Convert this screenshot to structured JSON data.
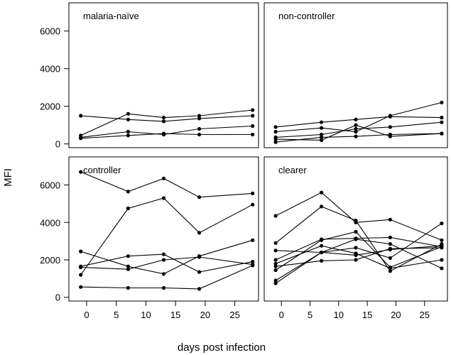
{
  "chart_data": {
    "type": "line",
    "xlabel": "days post infection",
    "ylabel": "MFI",
    "x": [
      -1,
      7,
      13,
      19,
      28
    ],
    "xlim": [
      -3,
      29
    ],
    "xticks": [
      0,
      5,
      10,
      15,
      20,
      25
    ],
    "panels": [
      {
        "title": "malaria-naïve",
        "ylim": [
          -200,
          7500
        ],
        "yticks": [
          0,
          2000,
          4000,
          6000
        ],
        "series": [
          {
            "values": [
              1500,
              1300,
              1200,
              1350,
              1500
            ]
          },
          {
            "values": [
              450,
              1600,
              1400,
              1500,
              1800
            ]
          },
          {
            "values": [
              350,
              650,
              500,
              800,
              950
            ]
          },
          {
            "values": [
              300,
              450,
              550,
              500,
              500
            ]
          }
        ]
      },
      {
        "title": "non-controller",
        "ylim": [
          -200,
          7500
        ],
        "yticks": [
          0,
          2000,
          4000,
          6000
        ],
        "series": [
          {
            "values": [
              900,
              1150,
              1300,
              1450,
              1400
            ]
          },
          {
            "values": [
              650,
              850,
              650,
              1500,
              2200
            ]
          },
          {
            "values": [
              350,
              500,
              800,
              900,
              1150
            ]
          },
          {
            "values": [
              250,
              200,
              1000,
              400,
              550
            ]
          },
          {
            "values": [
              100,
              350,
              400,
              500,
              550
            ]
          }
        ]
      },
      {
        "title": "controller",
        "ylim": [
          -200,
          7500
        ],
        "yticks": [
          0,
          2000,
          4000,
          6000
        ],
        "series": [
          {
            "values": [
              6700,
              5650,
              6350,
              5350,
              5550
            ]
          },
          {
            "values": [
              1200,
              4750,
              5300,
              3450,
              4950
            ]
          },
          {
            "values": [
              2450,
              1650,
              1250,
              2200,
              3050
            ]
          },
          {
            "values": [
              1650,
              2200,
              2300,
              1350,
              1900
            ]
          },
          {
            "values": [
              1600,
              1500,
              2000,
              2150,
              1750
            ]
          },
          {
            "values": [
              550,
              500,
              500,
              450,
              1700
            ]
          }
        ]
      },
      {
        "title": "clearer",
        "ylim": [
          -200,
          7500
        ],
        "yticks": [
          0,
          2000,
          4000,
          6000
        ],
        "series": [
          {
            "values": [
              4350,
              5600,
              4000,
              4150,
              3050
            ]
          },
          {
            "values": [
              2900,
              4850,
              4100,
              1400,
              2850
            ]
          },
          {
            "values": [
              2500,
              2400,
              2650,
              2100,
              3950
            ]
          },
          {
            "values": [
              2000,
              3100,
              3150,
              3200,
              2700
            ]
          },
          {
            "values": [
              1800,
              2750,
              2350,
              1550,
              2000
            ]
          },
          {
            "values": [
              1650,
              1950,
              2000,
              2600,
              2650
            ]
          },
          {
            "values": [
              1450,
              3050,
              3500,
              1600,
              2700
            ]
          },
          {
            "values": [
              900,
              2400,
              3100,
              2850,
              1550
            ]
          },
          {
            "values": [
              750,
              2400,
              2250,
              2550,
              2750
            ]
          }
        ]
      }
    ]
  }
}
